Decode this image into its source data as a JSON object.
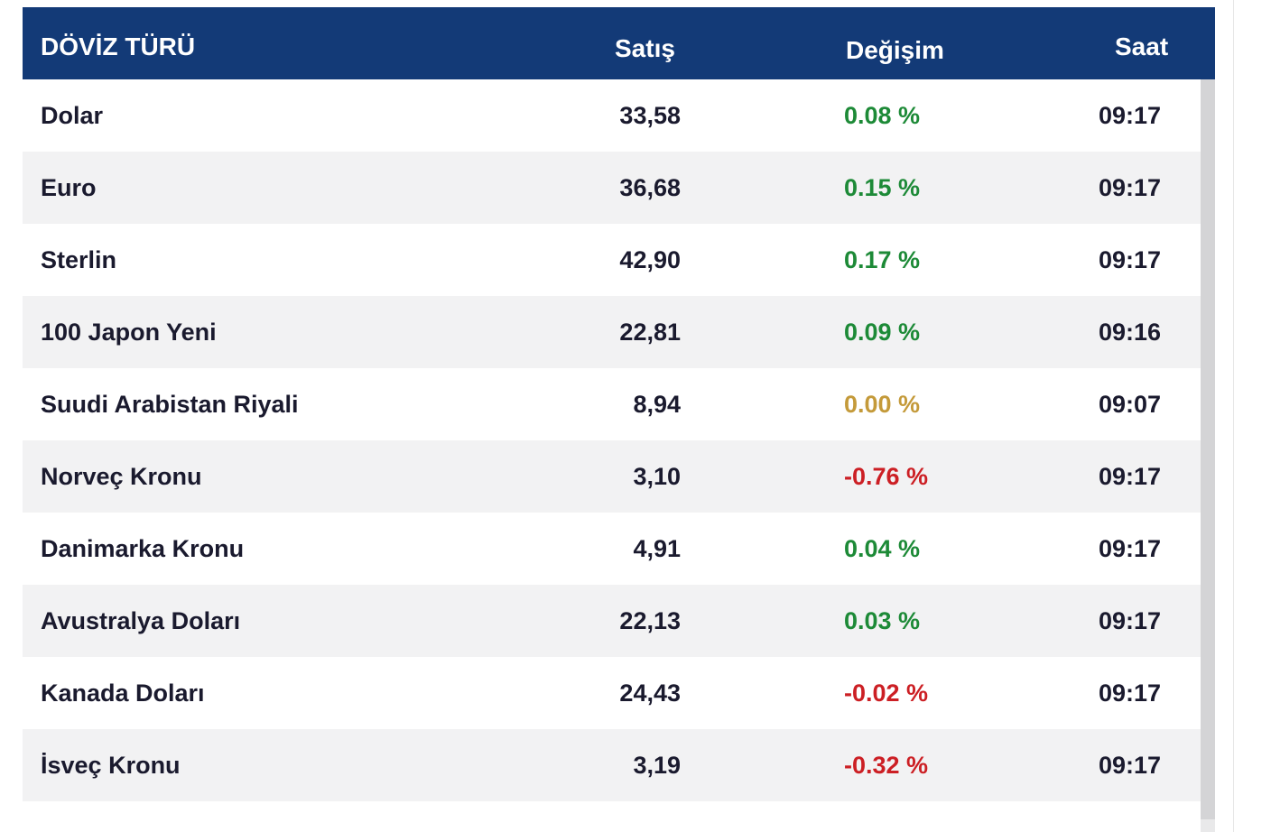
{
  "header": {
    "col_name": "DÖVİZ TÜRÜ",
    "col_satis": "Satış",
    "col_degisim": "Değişim",
    "col_saat": "Saat"
  },
  "colors": {
    "header_bg": "#133a77",
    "up": "#1d8a37",
    "flat": "#c49a3a",
    "down": "#cc1f24",
    "row_alt": "#f2f2f3"
  },
  "rows": [
    {
      "name": "Dolar",
      "satis": "33,58",
      "change": "0.08 %",
      "trend": "up",
      "time": "09:17"
    },
    {
      "name": "Euro",
      "satis": "36,68",
      "change": "0.15 %",
      "trend": "up",
      "time": "09:17"
    },
    {
      "name": "Sterlin",
      "satis": "42,90",
      "change": "0.17 %",
      "trend": "up",
      "time": "09:17"
    },
    {
      "name": "100 Japon Yeni",
      "satis": "22,81",
      "change": "0.09 %",
      "trend": "up",
      "time": "09:16"
    },
    {
      "name": "Suudi Arabistan Riyali",
      "satis": "8,94",
      "change": "0.00 %",
      "trend": "flat",
      "time": "09:07"
    },
    {
      "name": "Norveç Kronu",
      "satis": "3,10",
      "change": "-0.76 %",
      "trend": "down",
      "time": "09:17"
    },
    {
      "name": "Danimarka Kronu",
      "satis": "4,91",
      "change": "0.04 %",
      "trend": "up",
      "time": "09:17"
    },
    {
      "name": "Avustralya Doları",
      "satis": "22,13",
      "change": "0.03 %",
      "trend": "up",
      "time": "09:17"
    },
    {
      "name": "Kanada Doları",
      "satis": "24,43",
      "change": "-0.02 %",
      "trend": "down",
      "time": "09:17"
    },
    {
      "name": "İsveç Kronu",
      "satis": "3,19",
      "change": "-0.32 %",
      "trend": "down",
      "time": "09:17"
    }
  ]
}
